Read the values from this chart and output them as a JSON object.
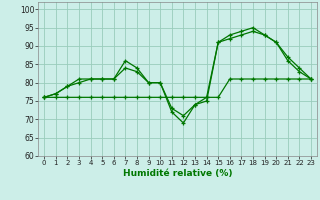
{
  "xlabel": "Humidité relative (%)",
  "background_color": "#cceee8",
  "grid_color": "#99ccbb",
  "line_color": "#007700",
  "xlim": [
    -0.5,
    23.5
  ],
  "ylim": [
    60,
    102
  ],
  "yticks": [
    60,
    65,
    70,
    75,
    80,
    85,
    90,
    95,
    100
  ],
  "xticks": [
    0,
    1,
    2,
    3,
    4,
    5,
    6,
    7,
    8,
    9,
    10,
    11,
    12,
    13,
    14,
    15,
    16,
    17,
    18,
    19,
    20,
    21,
    22,
    23
  ],
  "series": [
    {
      "x": [
        0,
        1,
        2,
        3,
        4,
        5,
        6,
        7,
        8,
        9,
        10,
        11,
        12,
        13,
        14,
        15,
        16,
        17,
        18,
        19,
        20,
        21,
        22,
        23
      ],
      "y": [
        76,
        77,
        79,
        81,
        81,
        81,
        81,
        86,
        84,
        80,
        80,
        72,
        69,
        74,
        75,
        91,
        93,
        94,
        95,
        93,
        91,
        87,
        84,
        81
      ]
    },
    {
      "x": [
        0,
        1,
        2,
        3,
        4,
        5,
        6,
        7,
        8,
        9,
        10,
        11,
        12,
        13,
        14,
        15,
        16,
        17,
        18,
        19,
        20,
        21,
        22,
        23
      ],
      "y": [
        76,
        77,
        79,
        80,
        81,
        81,
        81,
        84,
        83,
        80,
        80,
        73,
        71,
        74,
        76,
        91,
        92,
        93,
        94,
        93,
        91,
        86,
        83,
        81
      ]
    },
    {
      "x": [
        0,
        1,
        2,
        3,
        4,
        5,
        6,
        7,
        8,
        9,
        10,
        11,
        12,
        13,
        14,
        15,
        16,
        17,
        18,
        19,
        20,
        21,
        22,
        23
      ],
      "y": [
        76,
        76,
        76,
        76,
        76,
        76,
        76,
        76,
        76,
        76,
        76,
        76,
        76,
        76,
        76,
        76,
        81,
        81,
        81,
        81,
        81,
        81,
        81,
        81
      ]
    }
  ]
}
